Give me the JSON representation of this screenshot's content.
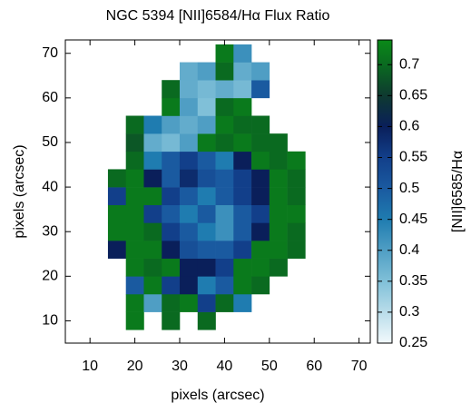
{
  "chart_data": {
    "type": "heatmap",
    "title": "NGC 5394 [NII]6584/Hα Flux Ratio",
    "xlabel": "pixels (arcsec)",
    "ylabel": "pixels (arcsec)",
    "colorbar_label": "[NII]6585/Hα",
    "x": [
      16,
      20,
      24,
      28,
      32,
      36,
      40,
      44,
      48,
      52,
      56
    ],
    "y": [
      10,
      14,
      18,
      22,
      26,
      30,
      34,
      38,
      42,
      46,
      50,
      54,
      58,
      62,
      66,
      70
    ],
    "cell_size": 4,
    "z": [
      [
        null,
        0.72,
        null,
        0.7,
        null,
        0.7,
        null,
        null,
        null,
        null,
        null
      ],
      [
        null,
        0.72,
        0.4,
        0.7,
        0.72,
        0.55,
        0.7,
        0.45,
        null,
        null,
        null
      ],
      [
        null,
        0.5,
        0.72,
        0.55,
        0.6,
        0.45,
        0.5,
        0.72,
        0.7,
        null,
        null
      ],
      [
        null,
        0.72,
        0.7,
        0.72,
        0.6,
        0.6,
        0.55,
        0.72,
        0.72,
        0.7,
        null
      ],
      [
        0.6,
        0.72,
        0.72,
        0.6,
        0.52,
        0.5,
        0.5,
        0.55,
        0.72,
        0.72,
        0.7
      ],
      [
        0.72,
        0.72,
        0.7,
        0.55,
        0.5,
        0.45,
        0.42,
        0.5,
        0.6,
        0.72,
        0.7
      ],
      [
        0.72,
        0.72,
        0.55,
        0.5,
        0.45,
        0.5,
        0.42,
        0.5,
        0.55,
        0.72,
        0.72
      ],
      [
        0.55,
        0.72,
        0.72,
        0.55,
        0.5,
        0.45,
        0.5,
        0.55,
        0.6,
        0.72,
        0.7
      ],
      [
        0.7,
        0.72,
        0.6,
        0.5,
        0.58,
        0.52,
        0.5,
        0.55,
        0.6,
        0.72,
        0.7
      ],
      [
        null,
        0.7,
        0.45,
        0.5,
        0.55,
        0.5,
        0.45,
        0.6,
        0.72,
        0.7,
        0.72
      ],
      [
        null,
        0.68,
        0.38,
        0.36,
        0.4,
        0.72,
        0.7,
        0.72,
        0.7,
        0.7,
        null
      ],
      [
        null,
        0.7,
        0.45,
        0.4,
        0.38,
        0.4,
        0.72,
        0.7,
        0.7,
        null,
        null
      ],
      [
        null,
        null,
        null,
        0.72,
        0.4,
        0.35,
        0.7,
        0.72,
        null,
        null,
        null
      ],
      [
        null,
        null,
        null,
        0.7,
        0.38,
        0.36,
        0.38,
        0.36,
        0.5,
        null,
        null
      ],
      [
        null,
        null,
        null,
        null,
        0.38,
        0.4,
        0.7,
        0.38,
        0.4,
        null,
        null
      ],
      [
        null,
        null,
        null,
        null,
        null,
        null,
        0.72,
        0.42,
        null,
        null,
        null
      ]
    ],
    "xlim": [
      4.5,
      72.5
    ],
    "ylim": [
      5,
      73
    ],
    "xticks": [
      10,
      20,
      30,
      40,
      50,
      60,
      70
    ],
    "yticks": [
      10,
      20,
      30,
      40,
      50,
      60,
      70
    ],
    "zlim": [
      0.25,
      0.74
    ],
    "zticks": [
      0.25,
      0.3,
      0.35,
      0.4,
      0.45,
      0.5,
      0.55,
      0.6,
      0.65,
      0.7
    ],
    "colorscale": [
      {
        "value": 0.25,
        "color": "#f2f9fc"
      },
      {
        "value": 0.35,
        "color": "#80c0d8"
      },
      {
        "value": 0.45,
        "color": "#1f7cb0"
      },
      {
        "value": 0.5,
        "color": "#1a5aa0"
      },
      {
        "value": 0.55,
        "color": "#123f8a"
      },
      {
        "value": 0.6,
        "color": "#0a1f5a"
      },
      {
        "value": 0.65,
        "color": "#0e3a30"
      },
      {
        "value": 0.7,
        "color": "#0a6a20"
      },
      {
        "value": 0.74,
        "color": "#0a8a18"
      }
    ]
  }
}
